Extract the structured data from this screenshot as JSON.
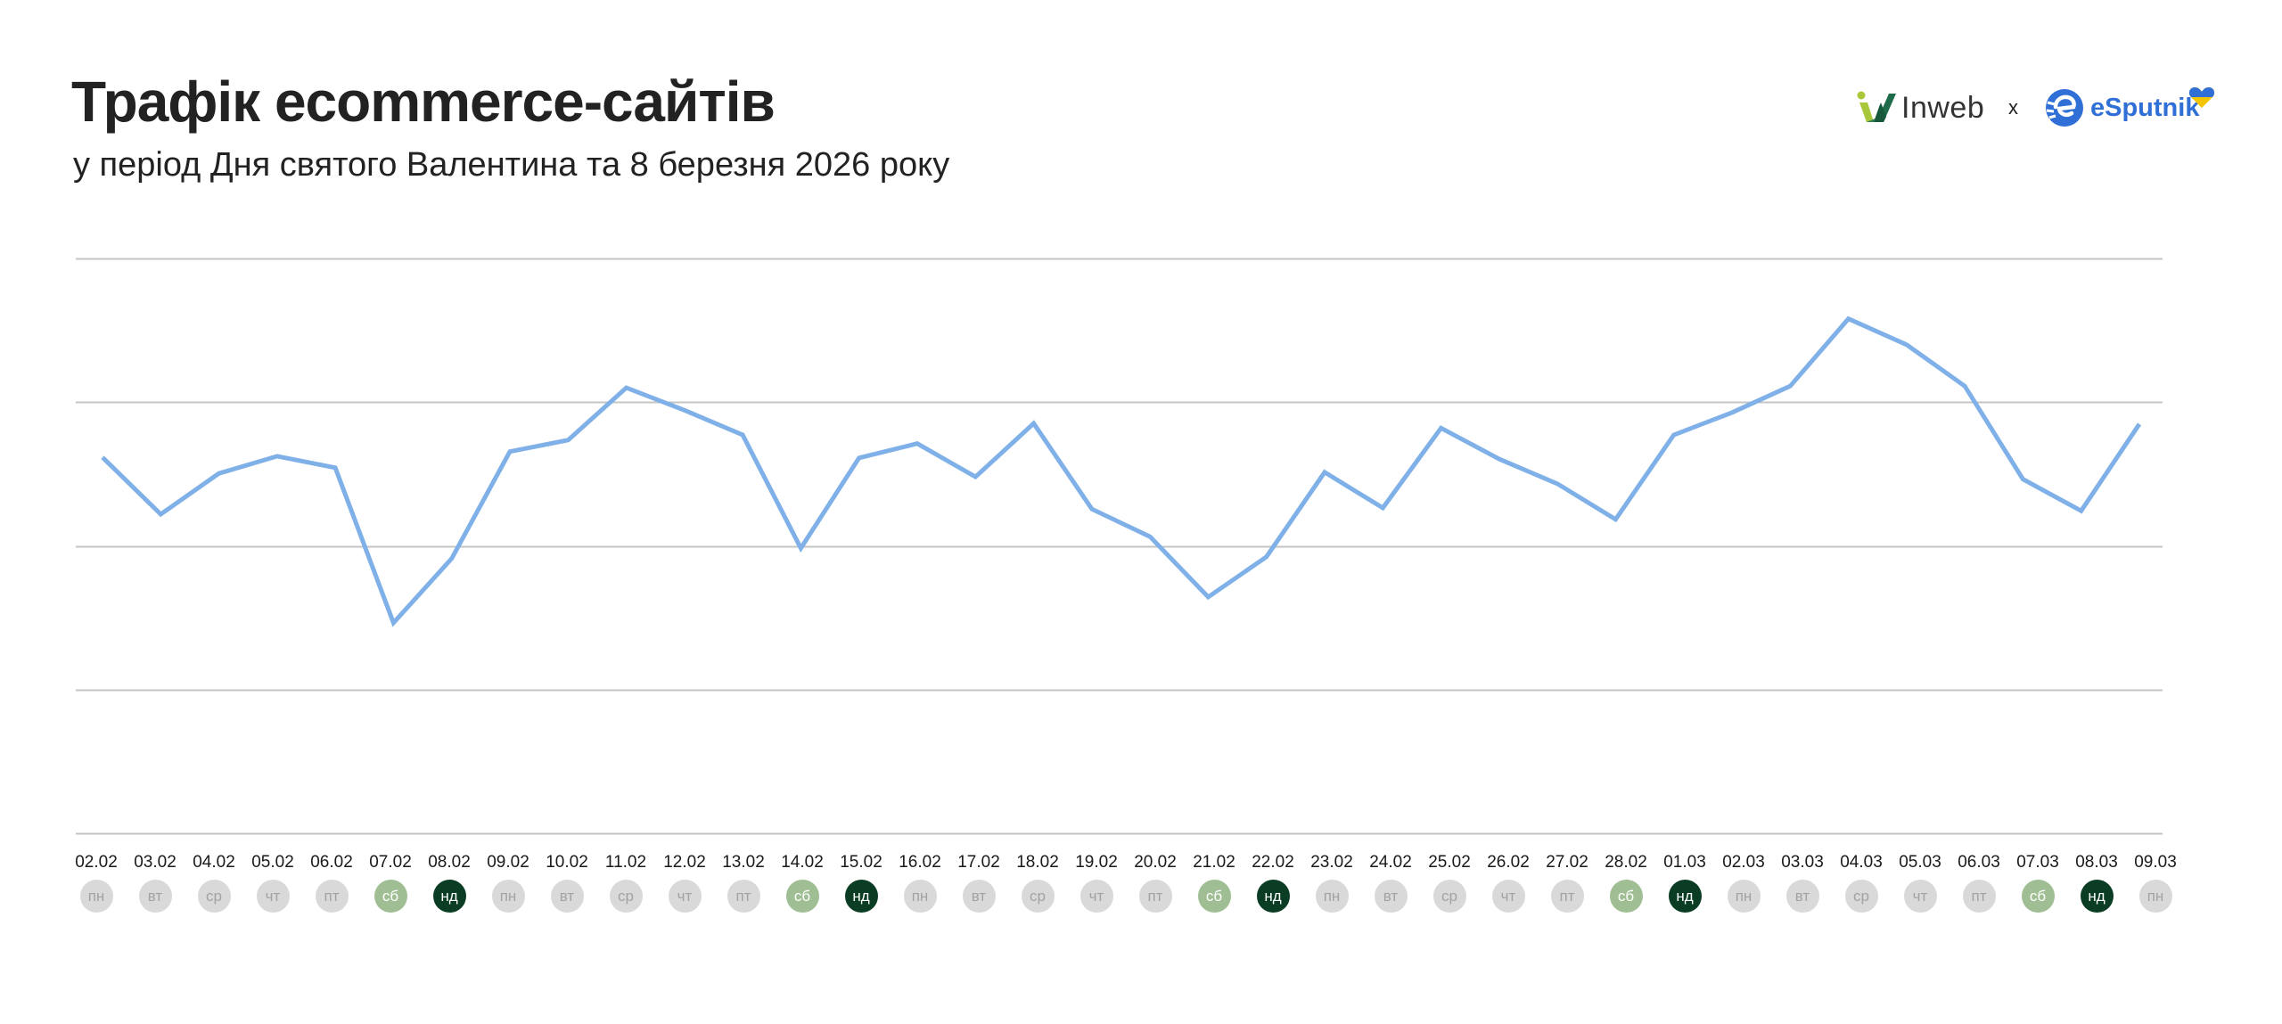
{
  "header": {
    "title": "Трафік ecommerce-сайтів",
    "subtitle": "у період Дня святого Валентина та 8 березня 2026 року"
  },
  "logos": {
    "left_name": "Inweb",
    "separator": "x",
    "right_name": "eSputnik",
    "left_icon": "inweb-w-icon",
    "right_icon": "esputnik-globe-icon",
    "heart_icon": "ukraine-heart-icon"
  },
  "colors": {
    "line": "#7fb0e8",
    "grid": "#c4c4c4",
    "weekday_bg": "#d9d9d9",
    "weekday_text": "#a3a3a3",
    "saturday_bg": "#a0be94",
    "saturday_text": "#ffffff",
    "sunday_bg": "#0b3d24",
    "sunday_text": "#ffffff",
    "brand_blue": "#2f6fd6",
    "inweb_green": "#1f6b4a",
    "inweb_lime": "#a8c83a"
  },
  "chart_data": {
    "type": "line",
    "title": "Трафік ecommerce-сайтів",
    "subtitle": "у період Дня святого Валентина та 8 березня 2026 року",
    "xlabel": "",
    "ylabel": "",
    "ylim": [
      0,
      100
    ],
    "y_ticks_visible": false,
    "grid": true,
    "gridlines": [
      0,
      25,
      50,
      75,
      100
    ],
    "legend": null,
    "categories": [
      "02.02",
      "03.02",
      "04.02",
      "05.02",
      "06.02",
      "07.02",
      "08.02",
      "09.02",
      "10.02",
      "11.02",
      "12.02",
      "13.02",
      "14.02",
      "15.02",
      "16.02",
      "17.02",
      "18.02",
      "19.02",
      "20.02",
      "21.02",
      "22.02",
      "23.02",
      "24.02",
      "25.02",
      "26.02",
      "27.02",
      "28.02",
      "01.03",
      "02.03",
      "03.03",
      "04.03",
      "05.03",
      "06.03",
      "07.03",
      "08.03",
      "09.03"
    ],
    "weekdays": [
      "пн",
      "вт",
      "ср",
      "чт",
      "пт",
      "сб",
      "нд",
      "пн",
      "вт",
      "ср",
      "чт",
      "пт",
      "сб",
      "нд",
      "пн",
      "вт",
      "ср",
      "чт",
      "пт",
      "сб",
      "нд",
      "пн",
      "вт",
      "ср",
      "чт",
      "пт",
      "сб",
      "нд",
      "пн",
      "вт",
      "ср",
      "чт",
      "пт",
      "сб",
      "нд",
      "пн"
    ],
    "series": [
      {
        "name": "Трафік",
        "values": [
          65.4,
          55.5,
          62.6,
          65.6,
          63.6,
          36.6,
          47.8,
          66.4,
          68.4,
          77.5,
          73.6,
          69.3,
          49.6,
          65.3,
          67.8,
          62.0,
          71.3,
          56.4,
          51.6,
          41.1,
          48.1,
          62.8,
          56.6,
          70.5,
          65.1,
          60.8,
          54.6,
          69.3,
          73.2,
          77.8,
          89.5,
          85.0,
          77.8,
          61.6,
          56.1,
          71.2
        ]
      }
    ]
  }
}
